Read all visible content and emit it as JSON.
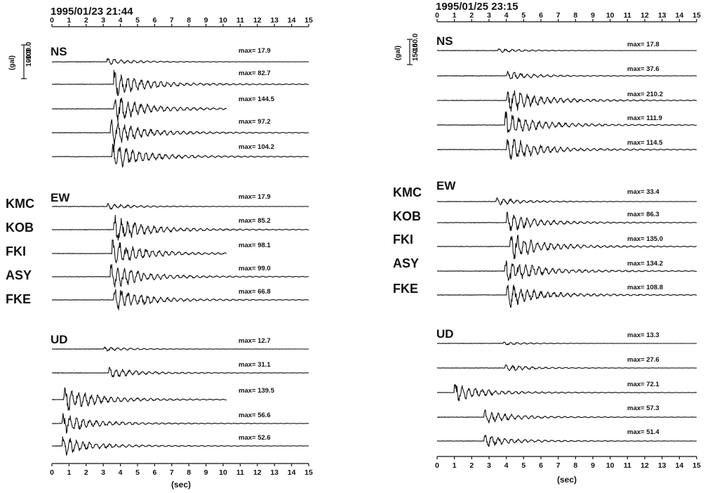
{
  "chart_data": [
    {
      "type": "line",
      "title": "1995/01/23 21:44",
      "xlabel": "(sec)",
      "xlim": [
        0,
        15
      ],
      "x_ticks": [
        "0",
        "1",
        "2",
        "3",
        "4",
        "5",
        "6",
        "7",
        "8",
        "9",
        "10",
        "11",
        "12",
        "13",
        "14",
        "15"
      ],
      "amplitude_scale": {
        "unit": "(gal)",
        "top": "100.0",
        "bottom": "-100.0"
      },
      "stations": [
        "KMC",
        "KOB",
        "FKI",
        "ASY",
        "FKE"
      ],
      "components": [
        {
          "name": "NS",
          "traces": [
            {
              "station": "KMC",
              "max_label": "max= 17.9",
              "max": 17.9,
              "arrival": 3.2,
              "duration": 15
            },
            {
              "station": "KOB",
              "max_label": "max= 82.7",
              "max": 82.7,
              "arrival": 3.6,
              "duration": 15
            },
            {
              "station": "FKI",
              "max_label": "max= 144.5",
              "max": 144.5,
              "arrival": 3.6,
              "duration": 10.2
            },
            {
              "station": "ASY",
              "max_label": "max= 97.2",
              "max": 97.2,
              "arrival": 3.4,
              "duration": 15
            },
            {
              "station": "FKE",
              "max_label": "max= 104.2",
              "max": 104.2,
              "arrival": 3.5,
              "duration": 15
            }
          ]
        },
        {
          "name": "EW",
          "traces": [
            {
              "station": "KMC",
              "max_label": "max= 17.9",
              "max": 17.9,
              "arrival": 3.2,
              "duration": 15
            },
            {
              "station": "KOB",
              "max_label": "max= 85.2",
              "max": 85.2,
              "arrival": 3.6,
              "duration": 15
            },
            {
              "station": "FKI",
              "max_label": "max= 98.1",
              "max": 98.1,
              "arrival": 3.5,
              "duration": 10.2
            },
            {
              "station": "ASY",
              "max_label": "max= 99.0",
              "max": 99.0,
              "arrival": 3.4,
              "duration": 15
            },
            {
              "station": "FKE",
              "max_label": "max= 66.8",
              "max": 66.8,
              "arrival": 3.6,
              "duration": 15
            }
          ]
        },
        {
          "name": "UD",
          "traces": [
            {
              "station": "KMC",
              "max_label": "max= 12.7",
              "max": 12.7,
              "arrival": 3.0,
              "duration": 15
            },
            {
              "station": "KOB",
              "max_label": "max= 31.1",
              "max": 31.1,
              "arrival": 3.3,
              "duration": 15
            },
            {
              "station": "FKI",
              "max_label": "max= 139.5",
              "max": 139.5,
              "arrival": 0.7,
              "duration": 10.2
            },
            {
              "station": "ASY",
              "max_label": "max= 56.6",
              "max": 56.6,
              "arrival": 0.6,
              "duration": 15
            },
            {
              "station": "FKE",
              "max_label": "max= 52.6",
              "max": 52.6,
              "arrival": 0.6,
              "duration": 15
            }
          ]
        }
      ]
    },
    {
      "type": "line",
      "title": "1995/01/25 23:15",
      "xlabel": "(sec)",
      "xlim": [
        0,
        15
      ],
      "x_ticks": [
        "0",
        "1",
        "2",
        "3",
        "4",
        "5",
        "6",
        "7",
        "8",
        "9",
        "10",
        "11",
        "12",
        "13",
        "14",
        "15"
      ],
      "amplitude_scale": {
        "unit": "(gal)",
        "top": "150.0",
        "bottom": "-150.0"
      },
      "stations": [
        "KMC",
        "KOB",
        "FKI",
        "ASY",
        "FKE"
      ],
      "components": [
        {
          "name": "NS",
          "traces": [
            {
              "station": "KMC",
              "max_label": "max= 17.8",
              "max": 17.8,
              "arrival": 3.5,
              "duration": 15
            },
            {
              "station": "KOB",
              "max_label": "max= 37.6",
              "max": 37.6,
              "arrival": 4.0,
              "duration": 15
            },
            {
              "station": "FKI",
              "max_label": "max= 210.2",
              "max": 210.2,
              "arrival": 4.0,
              "duration": 15
            },
            {
              "station": "ASY",
              "max_label": "max= 111.9",
              "max": 111.9,
              "arrival": 3.9,
              "duration": 15
            },
            {
              "station": "FKE",
              "max_label": "max= 114.5",
              "max": 114.5,
              "arrival": 4.0,
              "duration": 15
            }
          ]
        },
        {
          "name": "EW",
          "traces": [
            {
              "station": "KMC",
              "max_label": "max= 33.4",
              "max": 33.4,
              "arrival": 3.4,
              "duration": 15
            },
            {
              "station": "KOB",
              "max_label": "max= 86.3",
              "max": 86.3,
              "arrival": 4.0,
              "duration": 15
            },
            {
              "station": "FKI",
              "max_label": "max= 135.0",
              "max": 135.0,
              "arrival": 4.2,
              "duration": 15
            },
            {
              "station": "ASY",
              "max_label": "max= 134.2",
              "max": 134.2,
              "arrival": 3.9,
              "duration": 15
            },
            {
              "station": "FKE",
              "max_label": "max= 108.8",
              "max": 108.8,
              "arrival": 4.0,
              "duration": 15
            }
          ]
        },
        {
          "name": "UD",
          "traces": [
            {
              "station": "KMC",
              "max_label": "max= 13.3",
              "max": 13.3,
              "arrival": 3.8,
              "duration": 15
            },
            {
              "station": "KOB",
              "max_label": "max= 27.6",
              "max": 27.6,
              "arrival": 3.9,
              "duration": 15
            },
            {
              "station": "FKI",
              "max_label": "max= 72.1",
              "max": 72.1,
              "arrival": 1.0,
              "duration": 15
            },
            {
              "station": "ASY",
              "max_label": "max= 57.3",
              "max": 57.3,
              "arrival": 2.7,
              "duration": 15
            },
            {
              "station": "FKE",
              "max_label": "max= 51.4",
              "max": 51.4,
              "arrival": 2.7,
              "duration": 15
            }
          ]
        }
      ]
    }
  ]
}
